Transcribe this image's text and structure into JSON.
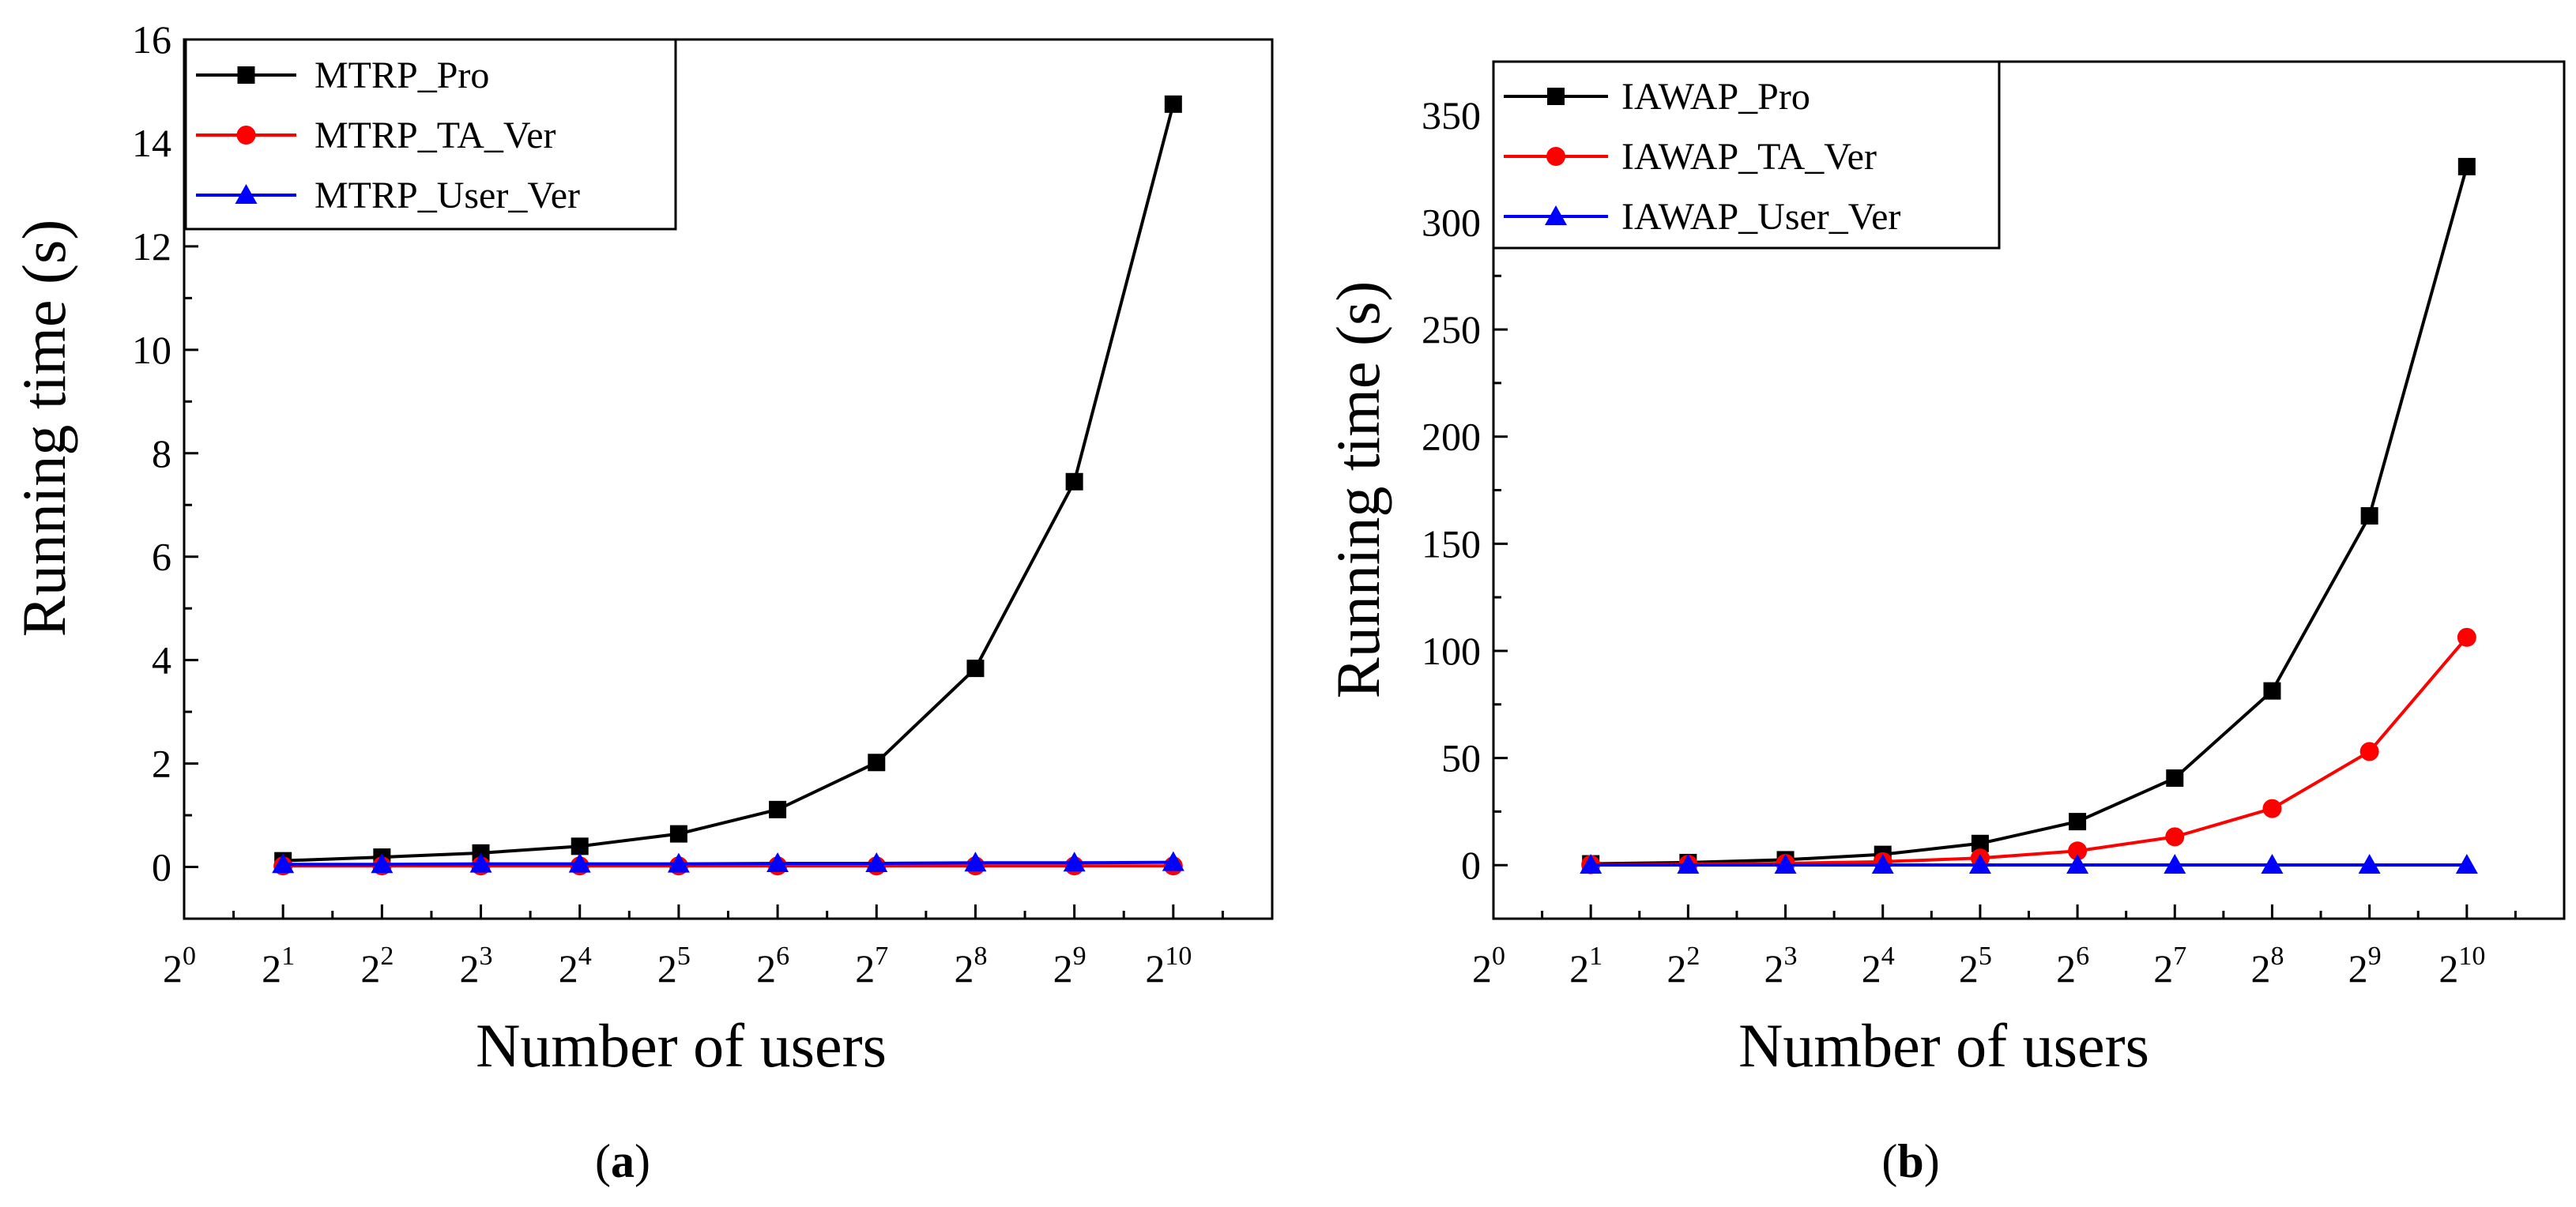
{
  "chart_data": [
    {
      "type": "line",
      "id": "a",
      "caption": {
        "open": "(",
        "letter": "a",
        "close": ")"
      },
      "xlabel": "Number of users",
      "ylabel": "Running time (s)",
      "xscale": "log2",
      "x_ticks": [
        {
          "base": "2",
          "exp": "0"
        },
        {
          "base": "2",
          "exp": "1"
        },
        {
          "base": "2",
          "exp": "2"
        },
        {
          "base": "2",
          "exp": "3"
        },
        {
          "base": "2",
          "exp": "4"
        },
        {
          "base": "2",
          "exp": "5"
        },
        {
          "base": "2",
          "exp": "6"
        },
        {
          "base": "2",
          "exp": "7"
        },
        {
          "base": "2",
          "exp": "8"
        },
        {
          "base": "2",
          "exp": "9"
        },
        {
          "base": "2",
          "exp": "10"
        }
      ],
      "x_exponents": [
        1,
        2,
        3,
        4,
        5,
        6,
        7,
        8,
        9,
        10
      ],
      "xlim": [
        0,
        11
      ],
      "ylim": [
        -1,
        16
      ],
      "y_ticks": [
        0,
        2,
        4,
        6,
        8,
        10,
        12,
        14,
        16
      ],
      "legend_position": "top-left",
      "series": [
        {
          "name": "MTRP_Pro",
          "color": "#000000",
          "marker": "square",
          "values": [
            0.12,
            0.19,
            0.27,
            0.4,
            0.64,
            1.11,
            2.02,
            3.84,
            7.45,
            14.75
          ]
        },
        {
          "name": "MTRP_TA_Ver",
          "color": "#ff0000",
          "marker": "circle",
          "values": [
            0.02,
            0.02,
            0.02,
            0.02,
            0.02,
            0.02,
            0.02,
            0.02,
            0.02,
            0.02
          ]
        },
        {
          "name": "MTRP_User_Ver",
          "color": "#0000ff",
          "marker": "triangle",
          "values": [
            0.05,
            0.05,
            0.06,
            0.06,
            0.06,
            0.07,
            0.07,
            0.08,
            0.08,
            0.09
          ]
        }
      ]
    },
    {
      "type": "line",
      "id": "b",
      "caption": {
        "open": "(",
        "letter": "b",
        "close": ")"
      },
      "xlabel": "Number of users",
      "ylabel": "Running time (s)",
      "xscale": "log2",
      "x_ticks": [
        {
          "base": "2",
          "exp": "0"
        },
        {
          "base": "2",
          "exp": "1"
        },
        {
          "base": "2",
          "exp": "2"
        },
        {
          "base": "2",
          "exp": "3"
        },
        {
          "base": "2",
          "exp": "4"
        },
        {
          "base": "2",
          "exp": "5"
        },
        {
          "base": "2",
          "exp": "6"
        },
        {
          "base": "2",
          "exp": "7"
        },
        {
          "base": "2",
          "exp": "8"
        },
        {
          "base": "2",
          "exp": "9"
        },
        {
          "base": "2",
          "exp": "10"
        }
      ],
      "x_exponents": [
        1,
        2,
        3,
        4,
        5,
        6,
        7,
        8,
        9,
        10
      ],
      "xlim": [
        0,
        11
      ],
      "ylim": [
        -25,
        375
      ],
      "y_ticks": [
        0,
        50,
        100,
        150,
        200,
        250,
        300,
        350
      ],
      "legend_position": "top-left",
      "series": [
        {
          "name": "IAWAP_Pro",
          "color": "#000000",
          "marker": "square",
          "values": [
            0.6,
            1.2,
            2.5,
            5.0,
            10.1,
            20.3,
            40.6,
            81.3,
            163.0,
            326.0
          ]
        },
        {
          "name": "IAWAP_TA_Ver",
          "color": "#ff0000",
          "marker": "circle",
          "values": [
            0.2,
            0.4,
            0.8,
            1.6,
            3.3,
            6.6,
            13.2,
            26.4,
            53.0,
            106.3
          ]
        },
        {
          "name": "IAWAP_User_Ver",
          "color": "#0000ff",
          "marker": "triangle",
          "values": [
            0.05,
            0.05,
            0.05,
            0.05,
            0.05,
            0.05,
            0.05,
            0.05,
            0.05,
            0.05
          ]
        }
      ]
    }
  ]
}
